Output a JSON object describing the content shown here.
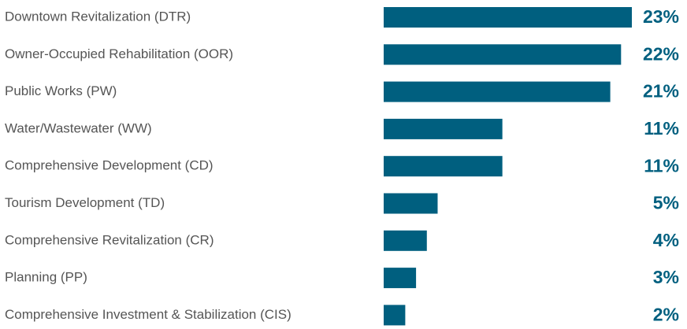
{
  "chart_data": {
    "type": "hbar",
    "categories": [
      "Downtown Revitalization (DTR)",
      "Owner-Occupied Rehabilitation (OOR)",
      "Public Works (PW)",
      "Water/Wastewater (WW)",
      "Comprehensive Development (CD)",
      "Tourism Development (TD)",
      "Comprehensive Revitalization (CR)",
      "Planning (PP)",
      "Comprehensive Investment & Stabilization (CIS)"
    ],
    "values": [
      23,
      22,
      21,
      11,
      11,
      5,
      4,
      3,
      2
    ],
    "value_labels": [
      "23%",
      "22%",
      "21%",
      "11%",
      "11%",
      "5%",
      "4%",
      "3%",
      "2%"
    ],
    "color": "#005f7f"
  }
}
